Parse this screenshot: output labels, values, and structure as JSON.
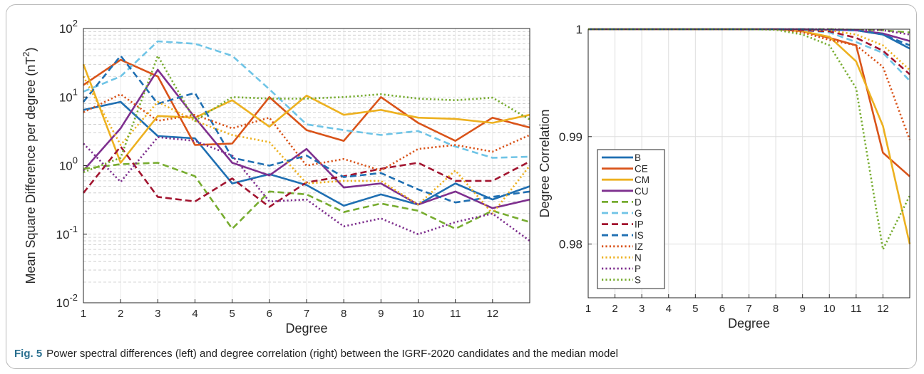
{
  "caption": {
    "label": "Fig. 5",
    "text": "Power spectral differences (left) and degree correlation (right) between the IGRF-2020 candidates and the median model"
  },
  "colors": {
    "B": "#1f6fb2",
    "CE": "#d95319",
    "CM": "#edb120",
    "CU": "#7e2f8e",
    "D": "#77ac30",
    "G": "#6fc4e6",
    "IP": "#a2142f",
    "IS": "#1f6fb2",
    "IZ": "#d95319",
    "N": "#edb120",
    "P": "#7e2f8e",
    "S": "#77ac30"
  },
  "chart_data": [
    {
      "type": "line",
      "title": "",
      "xlabel": "Degree",
      "ylabel": "Mean Square Difference per degree (nT",
      "ylabel_sup": "2",
      "ylabel_end": ")",
      "yscale": "log",
      "xlim": [
        1,
        13
      ],
      "ylim": [
        0.01,
        100
      ],
      "xticks": [
        1,
        2,
        3,
        4,
        5,
        6,
        7,
        8,
        9,
        10,
        11,
        12
      ],
      "yticks": [
        {
          "value": 0.01,
          "base": "10",
          "exp": "-2"
        },
        {
          "value": 0.1,
          "base": "10",
          "exp": "-1"
        },
        {
          "value": 1,
          "base": "10",
          "exp": "0"
        },
        {
          "value": 10,
          "base": "10",
          "exp": "1"
        },
        {
          "value": 100,
          "base": "10",
          "exp": "2"
        }
      ],
      "grid": "minor-dashed",
      "x": [
        1,
        2,
        3,
        4,
        5,
        6,
        7,
        8,
        9,
        10,
        11,
        12,
        13
      ],
      "series": [
        {
          "name": "B",
          "style": "solid",
          "values": [
            6.5,
            8.5,
            2.7,
            2.5,
            0.55,
            0.75,
            0.52,
            0.26,
            0.38,
            0.27,
            0.55,
            0.32,
            0.5
          ]
        },
        {
          "name": "CE",
          "style": "solid",
          "values": [
            15,
            35,
            20,
            2.0,
            2.1,
            10,
            3.3,
            2.3,
            10,
            4.2,
            2.3,
            5.0,
            3.6
          ]
        },
        {
          "name": "CM",
          "style": "solid",
          "values": [
            30,
            1.1,
            5.3,
            5.0,
            9.0,
            3.7,
            10.5,
            5.5,
            6.5,
            5.0,
            4.8,
            4.2,
            5.5
          ]
        },
        {
          "name": "CU",
          "style": "solid",
          "values": [
            0.85,
            3.5,
            25,
            5.0,
            1.1,
            0.72,
            1.75,
            0.48,
            0.55,
            0.27,
            0.42,
            0.24,
            0.32
          ]
        },
        {
          "name": "D",
          "style": "dashed",
          "values": [
            0.9,
            1.05,
            1.1,
            0.7,
            0.12,
            0.42,
            0.38,
            0.21,
            0.28,
            0.22,
            0.12,
            0.22,
            0.15
          ]
        },
        {
          "name": "G",
          "style": "dashed",
          "values": [
            12,
            20,
            65,
            60,
            40,
            13,
            4.0,
            3.3,
            2.8,
            3.2,
            1.9,
            1.3,
            1.35
          ]
        },
        {
          "name": "IP",
          "style": "dashed",
          "values": [
            0.4,
            1.9,
            0.35,
            0.3,
            0.65,
            0.25,
            0.57,
            0.7,
            0.9,
            1.1,
            0.6,
            0.6,
            1.15
          ]
        },
        {
          "name": "IS",
          "style": "dashed",
          "values": [
            8.5,
            40,
            8.0,
            11.5,
            1.3,
            1.0,
            1.4,
            0.68,
            0.78,
            0.45,
            0.29,
            0.35,
            0.42
          ]
        },
        {
          "name": "IZ",
          "style": "dotted",
          "values": [
            6.0,
            11,
            4.5,
            5.5,
            3.5,
            5.0,
            1.0,
            1.25,
            0.85,
            1.75,
            2.0,
            1.6,
            2.8
          ]
        },
        {
          "name": "N",
          "style": "dotted",
          "values": [
            20,
            2.0,
            8.5,
            4.5,
            2.8,
            2.2,
            0.55,
            0.6,
            0.6,
            0.27,
            0.85,
            0.2,
            1.0
          ]
        },
        {
          "name": "P",
          "style": "dotted",
          "values": [
            2.1,
            0.58,
            2.6,
            2.3,
            1.4,
            0.3,
            0.32,
            0.13,
            0.17,
            0.1,
            0.15,
            0.2,
            0.08
          ]
        },
        {
          "name": "S",
          "style": "dotted",
          "values": [
            0.8,
            1.3,
            40,
            4.5,
            10,
            9.5,
            9.5,
            10,
            11,
            9.5,
            9.0,
            9.8,
            4.7
          ]
        }
      ]
    },
    {
      "type": "line",
      "title": "",
      "xlabel": "Degree",
      "ylabel": "Degree Correlation",
      "xlim": [
        1,
        13
      ],
      "ylim": [
        0.975,
        1.0
      ],
      "xticks": [
        1,
        2,
        3,
        4,
        5,
        6,
        7,
        8,
        9,
        10,
        11,
        12
      ],
      "yticks": [
        {
          "value": 0.98,
          "label": "0.98"
        },
        {
          "value": 0.99,
          "label": "0.99"
        },
        {
          "value": 1.0,
          "label": "1"
        }
      ],
      "grid": "major",
      "legend": "left-center",
      "x": [
        1,
        2,
        3,
        4,
        5,
        6,
        7,
        8,
        9,
        10,
        11,
        12,
        13
      ],
      "series": [
        {
          "name": "B",
          "style": "solid",
          "values": [
            1,
            1,
            1,
            1,
            1,
            1,
            1,
            1,
            0.99995,
            0.99995,
            0.9999,
            0.9995,
            0.9982
          ]
        },
        {
          "name": "CE",
          "style": "solid",
          "values": [
            1,
            1,
            1,
            1,
            1,
            1,
            1,
            1,
            0.9998,
            0.9992,
            0.9985,
            0.9885,
            0.9863
          ]
        },
        {
          "name": "CM",
          "style": "solid",
          "values": [
            1,
            1,
            1,
            1,
            1,
            1,
            1,
            1,
            0.9998,
            0.9993,
            0.997,
            0.991,
            0.98
          ]
        },
        {
          "name": "CU",
          "style": "solid",
          "values": [
            1,
            1,
            1,
            1,
            1,
            1,
            1,
            1,
            1,
            0.99995,
            0.9999,
            0.9996,
            0.9989
          ]
        },
        {
          "name": "D",
          "style": "dashed",
          "values": [
            1,
            1,
            1,
            1,
            1,
            1,
            1,
            1,
            1,
            1,
            0.99995,
            0.9999,
            0.9997
          ]
        },
        {
          "name": "G",
          "style": "dashed",
          "values": [
            1,
            1,
            1,
            1,
            1,
            1,
            1,
            1,
            0.9999,
            0.9997,
            0.9988,
            0.9978,
            0.9952
          ]
        },
        {
          "name": "IP",
          "style": "dashed",
          "values": [
            1,
            1,
            1,
            1,
            1,
            1,
            1,
            1,
            0.9999,
            0.9998,
            0.9992,
            0.998,
            0.9958
          ]
        },
        {
          "name": "IS",
          "style": "dashed",
          "values": [
            1,
            1,
            1,
            1,
            1,
            1,
            1,
            1,
            1,
            0.99995,
            0.9999,
            0.9995,
            0.9985
          ]
        },
        {
          "name": "IZ",
          "style": "dotted",
          "values": [
            1,
            1,
            1,
            1,
            1,
            1,
            1,
            1,
            0.9997,
            0.999,
            0.9985,
            0.9965,
            0.9897
          ]
        },
        {
          "name": "N",
          "style": "dotted",
          "values": [
            1,
            1,
            1,
            1,
            1,
            1,
            1,
            1,
            1,
            0.9999,
            0.9995,
            0.9985,
            0.9962
          ]
        },
        {
          "name": "P",
          "style": "dotted",
          "values": [
            1,
            1,
            1,
            1,
            1,
            1,
            1,
            1,
            1,
            1,
            0.99995,
            0.9999,
            0.9995
          ]
        },
        {
          "name": "S",
          "style": "dotted",
          "values": [
            1,
            1,
            1,
            1,
            1,
            1,
            1,
            0.99995,
            0.9995,
            0.9985,
            0.9945,
            0.9795,
            0.9845
          ]
        }
      ]
    }
  ]
}
